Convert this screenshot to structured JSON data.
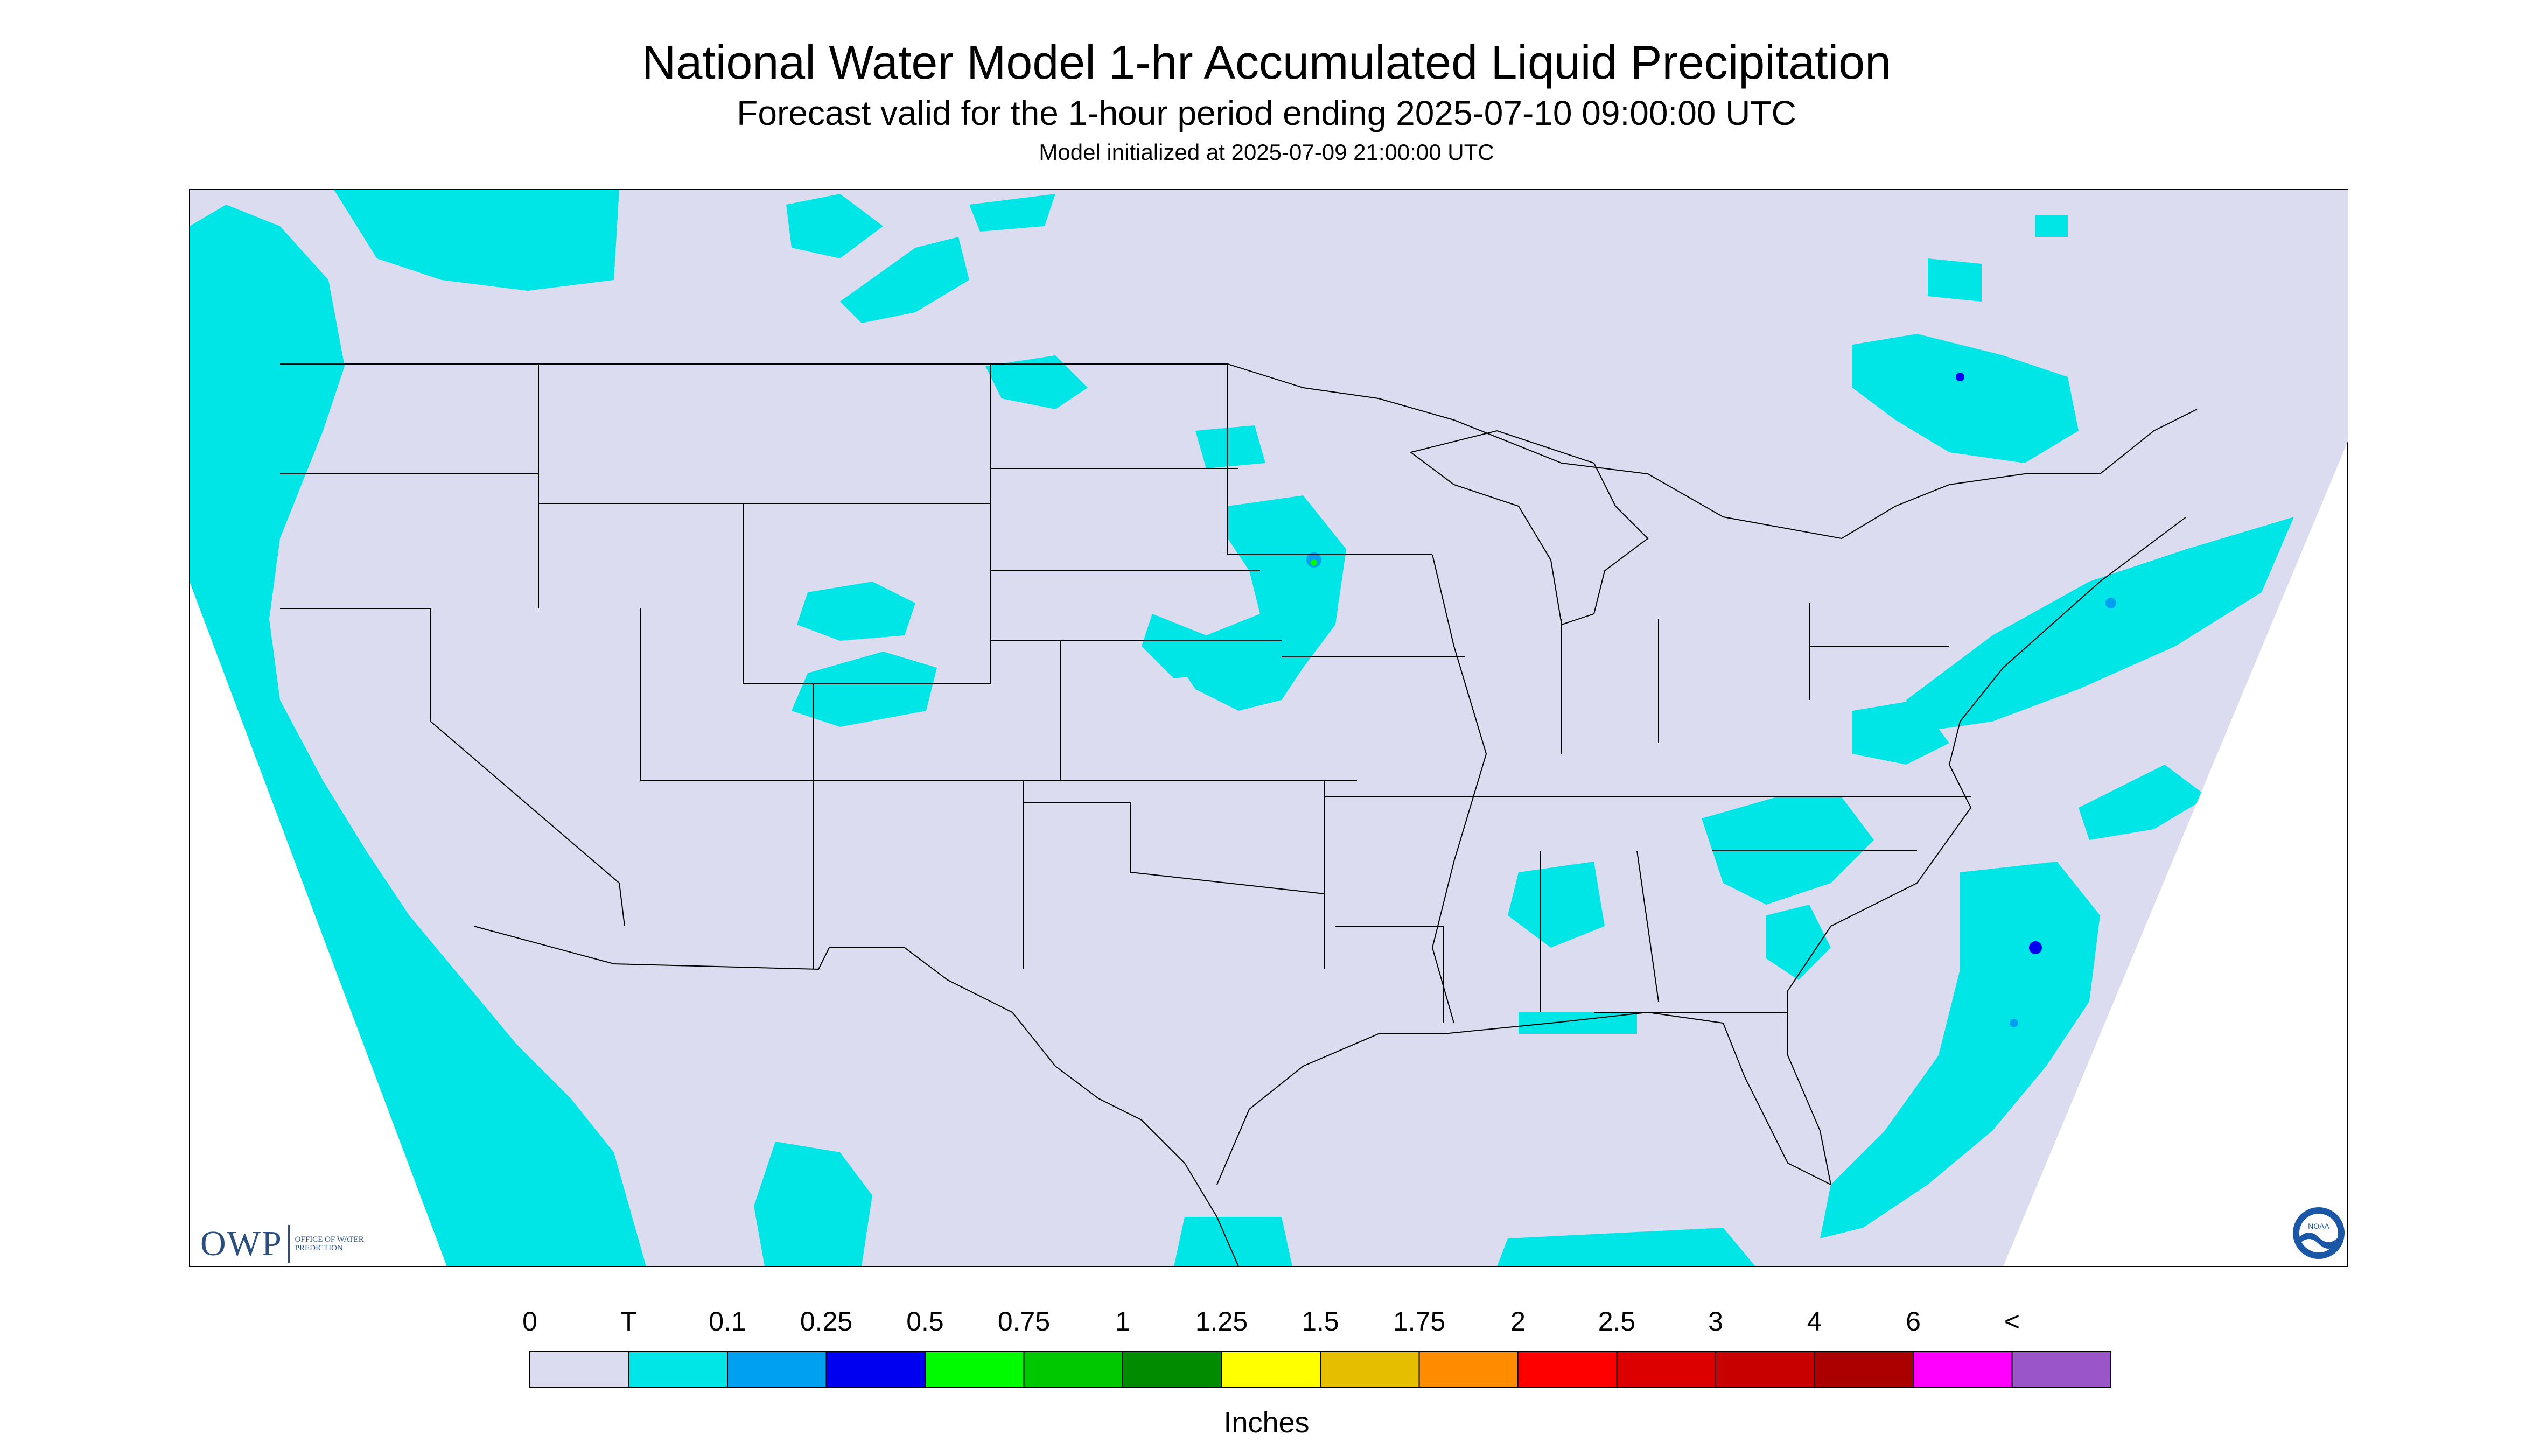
{
  "title": "National Water Model 1-hr Accumulated Liquid Precipitation",
  "subtitle": "Forecast valid for the 1-hour period ending 2025-07-10 09:00:00 UTC",
  "init_line": "Model initialized at 2025-07-09 21:00:00 UTC",
  "colors": {
    "background": "#dcdcf0",
    "trace": "#00e6e6",
    "border": "#000000"
  },
  "legend": {
    "units": "Inches",
    "ticks": [
      "0",
      "T",
      "0.1",
      "0.25",
      "0.5",
      "0.75",
      "1",
      "1.25",
      "1.5",
      "1.75",
      "2",
      "2.5",
      "3",
      "4",
      "6",
      "<"
    ],
    "colors": [
      "#dcdcf0",
      "#00e6e6",
      "#00a0f0",
      "#0000f0",
      "#00fa00",
      "#00c800",
      "#008c00",
      "#ffff00",
      "#e6be00",
      "#ff8c00",
      "#ff0000",
      "#dc0000",
      "#c80000",
      "#aa0000",
      "#ff00ff",
      "#9a55c8"
    ]
  },
  "logos": {
    "owp_text": "OWP",
    "owp_sub": "OFFICE OF WATER PREDICTION",
    "noaa_text": "NOAA"
  }
}
